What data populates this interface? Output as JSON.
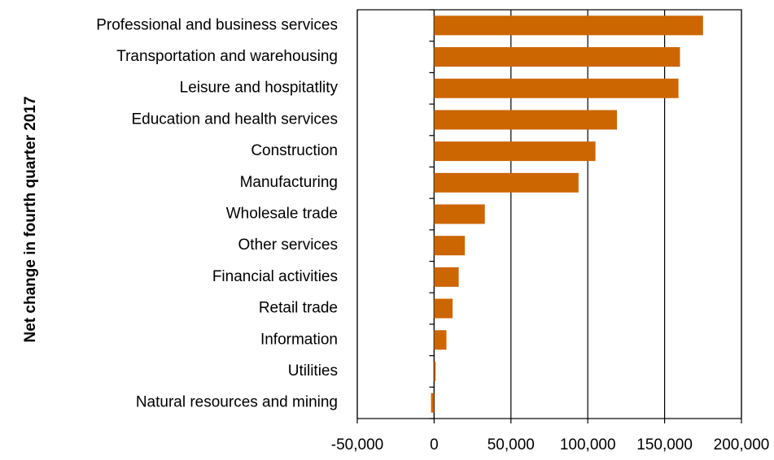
{
  "chart_data": {
    "type": "bar",
    "orientation": "horizontal",
    "y_axis_label": "Net change in fourth quarter 2017",
    "categories": [
      "Professional and business services",
      "Transportation and warehousing",
      "Leisure and hospitatlity",
      "Education and health services",
      "Construction",
      "Manufacturing",
      "Wholesale trade",
      "Other services",
      "Financial activities",
      "Retail trade",
      "Information",
      "Utilities",
      "Natural resources and mining"
    ],
    "values": [
      175000,
      160000,
      159000,
      119000,
      105000,
      94000,
      33000,
      20000,
      16000,
      12000,
      8000,
      1000,
      -2000
    ],
    "color": "#cc6600",
    "xlim": [
      -50000,
      200000
    ],
    "xticks": [
      {
        "value": -50000,
        "label": "-50,000"
      },
      0,
      {
        "value": 50000,
        "label": "50,000"
      },
      {
        "value": 100000,
        "label": "100,000"
      },
      {
        "value": 150000,
        "label": "150,000"
      },
      {
        "value": 200000,
        "label": "200,000"
      }
    ],
    "grid": true
  }
}
